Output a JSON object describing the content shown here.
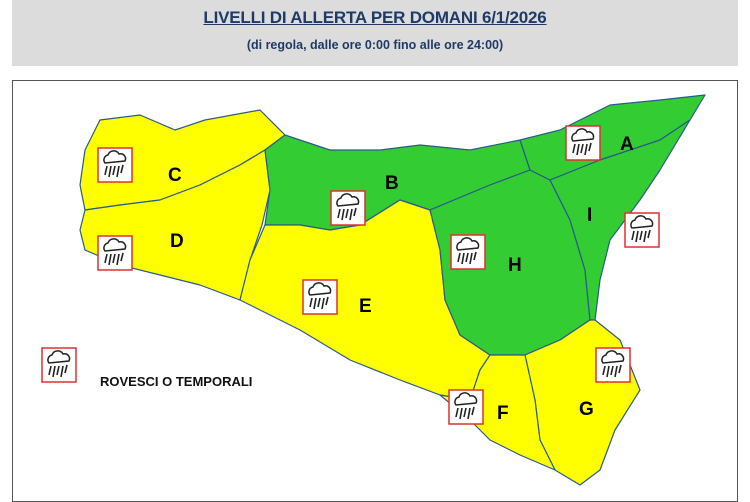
{
  "header": {
    "title": "LIVELLI DI ALLERTA PER DOMANI 6/1/2026",
    "subtitle": "(di regola, dalle ore 0:00 fino alle ore 24:00)"
  },
  "colors": {
    "yellow": "#ffff00",
    "green": "#33cc33",
    "icon_border": "#e03030"
  },
  "zones": [
    {
      "id": "A",
      "level": "green"
    },
    {
      "id": "B",
      "level": "green"
    },
    {
      "id": "C",
      "level": "yellow"
    },
    {
      "id": "D",
      "level": "yellow"
    },
    {
      "id": "E",
      "level": "yellow"
    },
    {
      "id": "F",
      "level": "yellow"
    },
    {
      "id": "G",
      "level": "yellow"
    },
    {
      "id": "H",
      "level": "green"
    },
    {
      "id": "I",
      "level": "green"
    }
  ],
  "storm_icon_zones": [
    "A",
    "B",
    "C",
    "D",
    "E",
    "F",
    "G",
    "H",
    "I"
  ],
  "legend": {
    "icon": "storm-cloud-icon",
    "label": "ROVESCI O TEMPORALI"
  }
}
